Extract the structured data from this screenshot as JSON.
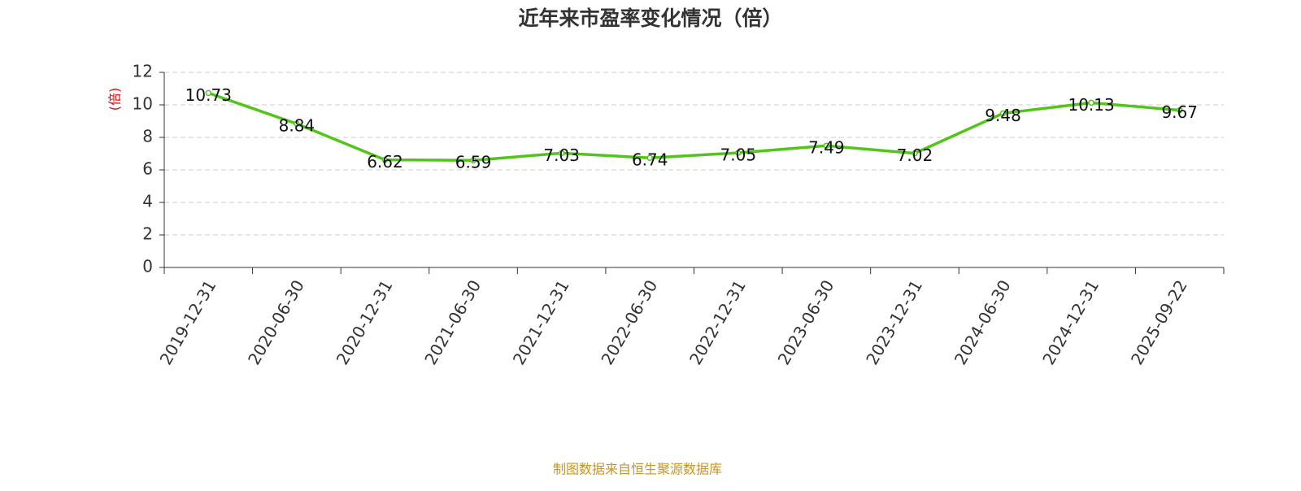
{
  "chart_data": {
    "type": "line",
    "title": "近年来市盈率变化情况（倍）",
    "y_label": "(倍)",
    "categories": [
      "2019-12-31",
      "2020-06-30",
      "2020-12-31",
      "2021-06-30",
      "2021-12-31",
      "2022-06-30",
      "2022-12-31",
      "2023-06-30",
      "2023-12-31",
      "2024-06-30",
      "2024-12-31",
      "2025-09-22"
    ],
    "series": [
      {
        "name": "市盈率",
        "color": "#52c41a",
        "values": [
          10.73,
          8.84,
          6.62,
          6.59,
          7.03,
          6.74,
          7.05,
          7.49,
          7.02,
          9.48,
          10.13,
          9.67
        ]
      }
    ],
    "ylim": [
      0,
      12
    ],
    "yticks": [
      0,
      2,
      4,
      6,
      8,
      10,
      12
    ],
    "grid": true,
    "source": "制图数据来自恒生聚源数据库"
  }
}
